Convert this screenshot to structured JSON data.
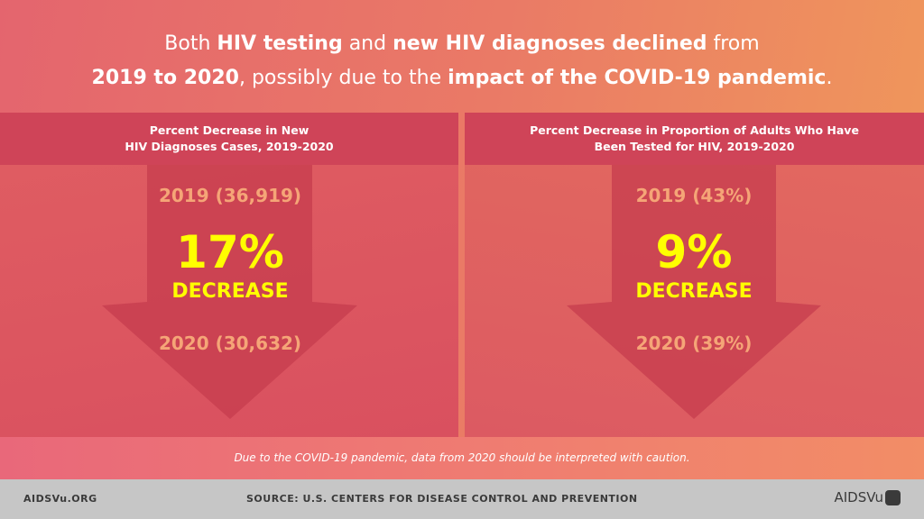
{
  "headline": {
    "p1": "Both ",
    "b1": "HIV testing",
    "p2": " and ",
    "b2": "new HIV diagnoses declined",
    "p3": " from",
    "b3": "2019 to 2020",
    "p4": ", possibly due to the ",
    "b4": "impact of the COVID-19 pandemic",
    "p5": "."
  },
  "panels": [
    {
      "title1": "Percent Decrease in New",
      "title2": "HIV Diagnoses Cases, 2019-2020",
      "from": "2019 (36,919)",
      "percent": "17%",
      "label": "DECREASE",
      "to": "2020 (30,632)"
    },
    {
      "title1": "Percent Decrease in Proportion of Adults Who Have",
      "title2": "Been Tested for HIV, 2019-2020",
      "from": "2019 (43%)",
      "percent": "9%",
      "label": "DECREASE",
      "to": "2020 (39%)"
    }
  ],
  "note": "Due to the COVID-19 pandemic, data from 2020 should be interpreted with caution.",
  "footer": {
    "site": "AIDSVu.ORG",
    "source": "SOURCE: U.S. CENTERS FOR DISEASE CONTROL AND PREVENTION",
    "logo": "AIDSVu"
  },
  "colors": {
    "highlight": "#ffff00",
    "value": "#f5a577",
    "header": "#cf4458",
    "footer": "#c6c6c6"
  }
}
